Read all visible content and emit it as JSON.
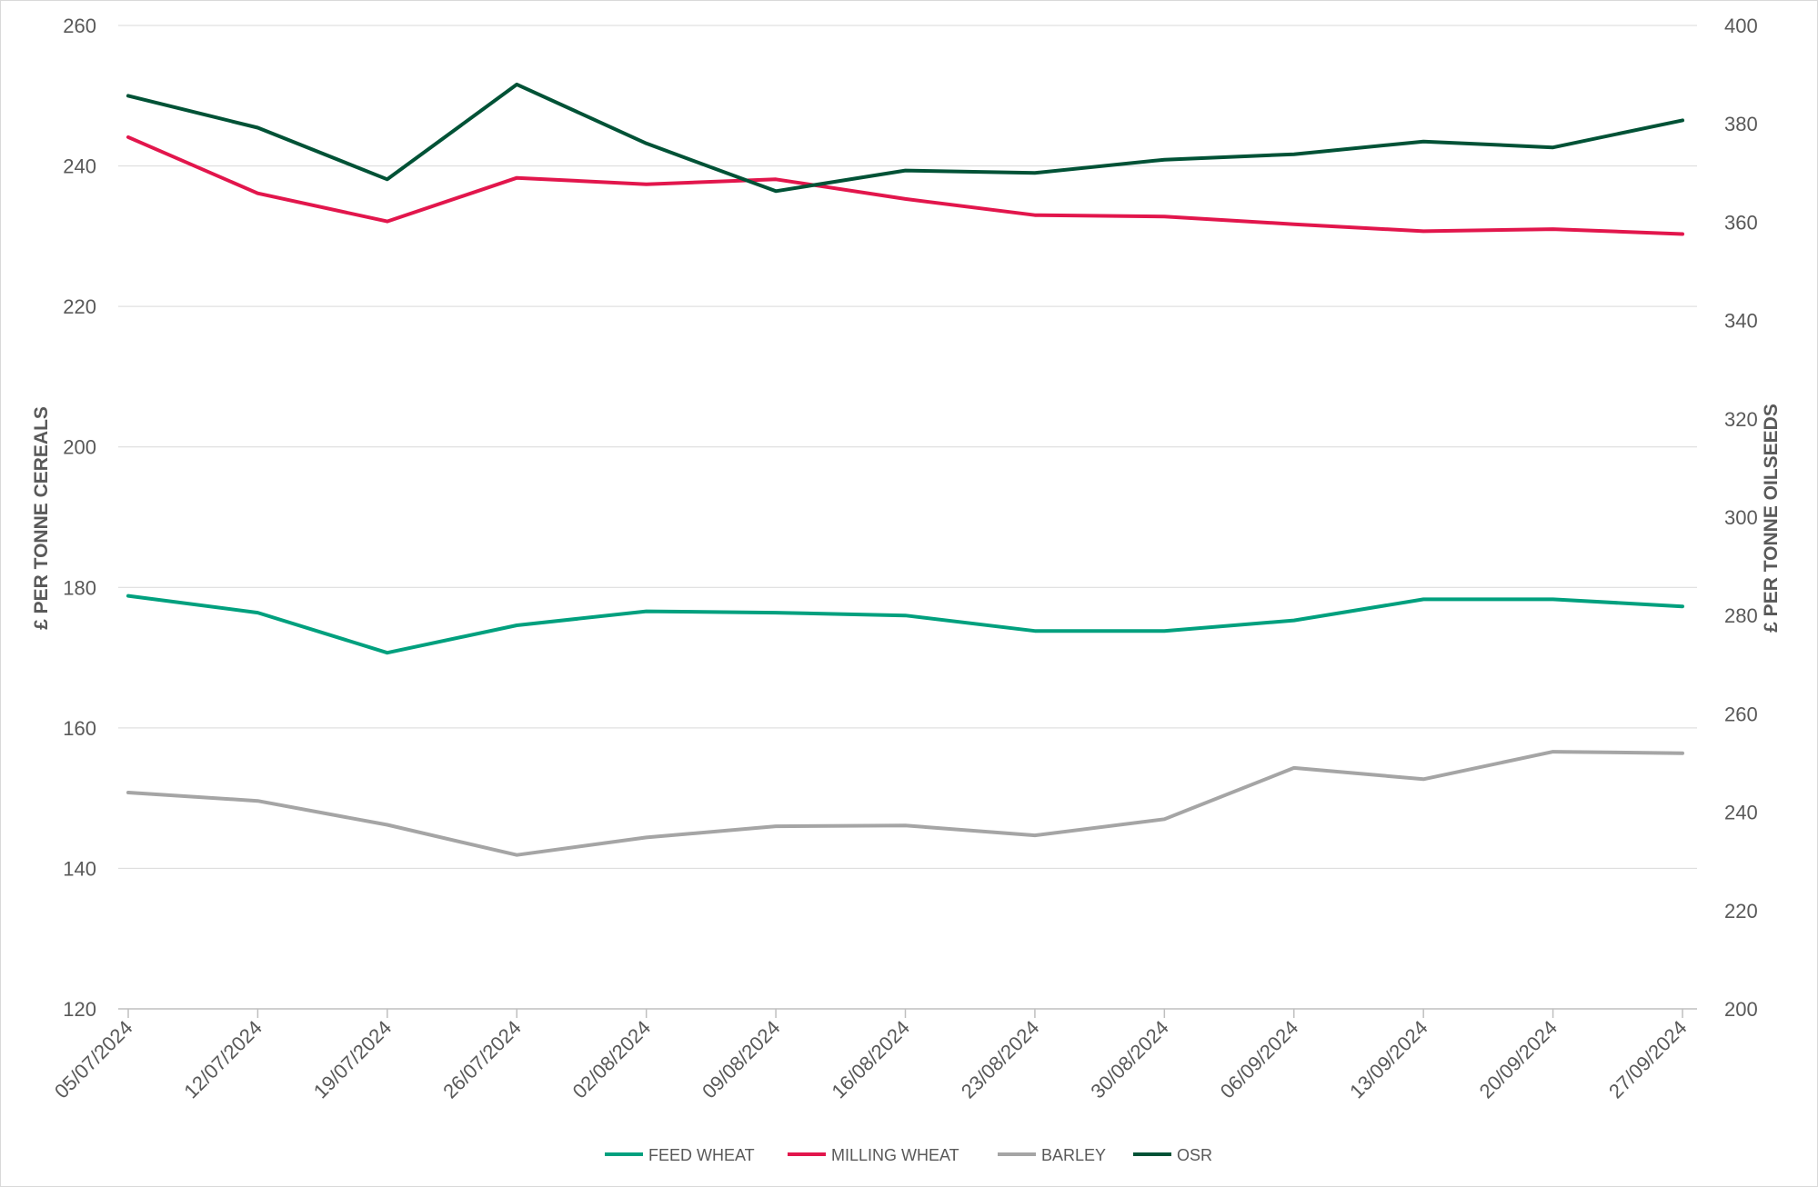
{
  "chart_data": {
    "type": "line",
    "categories": [
      "05/07/2024",
      "12/07/2024",
      "19/07/2024",
      "26/07/2024",
      "02/08/2024",
      "09/08/2024",
      "16/08/2024",
      "23/08/2024",
      "30/08/2024",
      "06/09/2024",
      "13/09/2024",
      "20/09/2024",
      "27/09/2024"
    ],
    "ylabel": "£ PER TONNE CEREALS",
    "ylabel_right": "£ PER TONNE OILSEEDS",
    "ylim": [
      120,
      260
    ],
    "ylim_right": [
      200,
      400
    ],
    "yticks": [
      120,
      140,
      160,
      180,
      200,
      220,
      240,
      260
    ],
    "yticks_right": [
      200,
      220,
      240,
      260,
      280,
      300,
      320,
      340,
      360,
      380,
      400
    ],
    "grid": true,
    "legend_position": "bottom",
    "series": [
      {
        "name": "FEED WHEAT",
        "axis": "left",
        "color": "#00a07e",
        "values": [
          178.8,
          176.4,
          170.7,
          174.6,
          176.6,
          176.4,
          176.0,
          173.8,
          173.8,
          175.3,
          178.3,
          178.3,
          177.3
        ]
      },
      {
        "name": "MILLING WHEAT",
        "axis": "left",
        "color": "#e2164c",
        "values": [
          244.1,
          236.1,
          232.1,
          238.3,
          237.4,
          238.1,
          235.3,
          233.0,
          232.8,
          231.7,
          230.7,
          231.0,
          230.3
        ]
      },
      {
        "name": "BARLEY",
        "axis": "left",
        "color": "#a5a5a5",
        "values": [
          150.8,
          149.6,
          146.2,
          141.9,
          144.4,
          146.0,
          146.1,
          144.7,
          147.0,
          154.3,
          152.7,
          156.6,
          156.4
        ]
      },
      {
        "name": "OSR",
        "axis": "right",
        "color": "#005236",
        "values": [
          385.7,
          379.2,
          368.7,
          388.0,
          376.0,
          366.3,
          370.5,
          370.0,
          372.7,
          373.8,
          376.4,
          375.2,
          380.7
        ]
      }
    ]
  }
}
